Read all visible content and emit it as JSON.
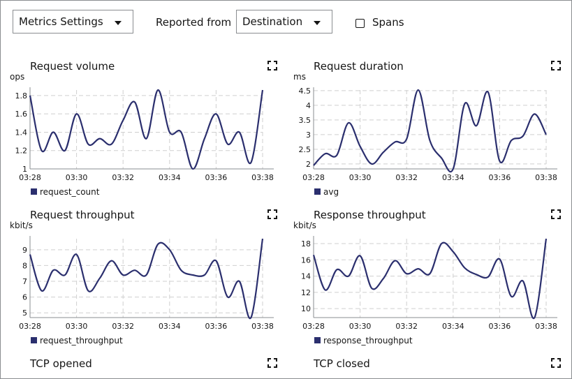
{
  "toolbar": {
    "metrics_settings": "Metrics Settings",
    "reported_from_label": "Reported from",
    "reported_from_value": "Destination",
    "spans_label": "Spans",
    "spans_checked": false
  },
  "colors": {
    "series": "#2b2f6e",
    "grid": "#cfcfcf",
    "axis": "#8a8d90"
  },
  "chart_data": [
    {
      "id": "request-volume",
      "type": "line",
      "title": "Request volume",
      "ylabel": "ops",
      "x": [
        "03:28",
        "03:28:30",
        "03:29",
        "03:29:30",
        "03:30",
        "03:30:30",
        "03:31",
        "03:31:30",
        "03:32",
        "03:32:30",
        "03:33",
        "03:33:30",
        "03:34",
        "03:34:30",
        "03:35",
        "03:35:30",
        "03:36",
        "03:36:30",
        "03:37",
        "03:37:30",
        "03:38"
      ],
      "xticks": [
        "03:28",
        "03:30",
        "03:32",
        "03:34",
        "03:36",
        "03:38"
      ],
      "yticks": [
        1,
        1.2,
        1.4,
        1.6,
        1.8
      ],
      "ylim": [
        1,
        1.86
      ],
      "series": [
        {
          "name": "request_count",
          "values": [
            1.8,
            1.2,
            1.4,
            1.2,
            1.6,
            1.27,
            1.33,
            1.27,
            1.53,
            1.73,
            1.33,
            1.86,
            1.4,
            1.4,
            1.0,
            1.33,
            1.6,
            1.27,
            1.4,
            1.07,
            1.86
          ]
        }
      ]
    },
    {
      "id": "request-duration",
      "type": "line",
      "title": "Request duration",
      "ylabel": "ms",
      "x": [
        "03:28",
        "03:28:30",
        "03:29",
        "03:29:30",
        "03:30",
        "03:30:30",
        "03:31",
        "03:31:30",
        "03:32",
        "03:32:30",
        "03:33",
        "03:33:30",
        "03:34",
        "03:34:30",
        "03:35",
        "03:35:30",
        "03:36",
        "03:36:30",
        "03:37",
        "03:37:30",
        "03:38"
      ],
      "xticks": [
        "03:28",
        "03:30",
        "03:32",
        "03:34",
        "03:36",
        "03:38"
      ],
      "yticks": [
        2,
        2.5,
        3,
        3.5,
        4,
        4.5
      ],
      "ylim": [
        1.83,
        4.52
      ],
      "series": [
        {
          "name": "avg",
          "values": [
            1.95,
            2.35,
            2.3,
            3.4,
            2.6,
            2.0,
            2.4,
            2.75,
            2.85,
            4.52,
            2.8,
            2.2,
            1.83,
            4.05,
            3.3,
            4.45,
            2.1,
            2.8,
            2.95,
            3.7,
            3.0
          ]
        }
      ]
    },
    {
      "id": "request-throughput",
      "type": "line",
      "title": "Request throughput",
      "ylabel": "kbit/s",
      "x": [
        "03:28",
        "03:28:30",
        "03:29",
        "03:29:30",
        "03:30",
        "03:30:30",
        "03:31",
        "03:31:30",
        "03:32",
        "03:32:30",
        "03:33",
        "03:33:30",
        "03:34",
        "03:34:30",
        "03:35",
        "03:35:30",
        "03:36",
        "03:36:30",
        "03:37",
        "03:37:30",
        "03:38"
      ],
      "xticks": [
        "03:28",
        "03:30",
        "03:32",
        "03:34",
        "03:36",
        "03:38"
      ],
      "yticks": [
        5,
        6,
        7,
        8,
        9
      ],
      "ylim": [
        4.7,
        9.7
      ],
      "series": [
        {
          "name": "request_throughput",
          "values": [
            8.7,
            6.4,
            7.7,
            7.4,
            8.7,
            6.4,
            7.2,
            8.3,
            7.4,
            7.7,
            7.4,
            9.35,
            9.0,
            7.7,
            7.4,
            7.4,
            8.3,
            6.0,
            7.0,
            4.7,
            9.7
          ]
        }
      ]
    },
    {
      "id": "response-throughput",
      "type": "line",
      "title": "Response throughput",
      "ylabel": "kbit/s",
      "x": [
        "03:28",
        "03:28:30",
        "03:29",
        "03:29:30",
        "03:30",
        "03:30:30",
        "03:31",
        "03:31:30",
        "03:32",
        "03:32:30",
        "03:33",
        "03:33:30",
        "03:34",
        "03:34:30",
        "03:35",
        "03:35:30",
        "03:36",
        "03:36:30",
        "03:37",
        "03:37:30",
        "03:38"
      ],
      "xticks": [
        "03:28",
        "03:30",
        "03:32",
        "03:34",
        "03:36",
        "03:38"
      ],
      "yticks": [
        10,
        12,
        14,
        16,
        18
      ],
      "ylim": [
        8.9,
        18.6
      ],
      "series": [
        {
          "name": "response_throughput",
          "values": [
            16.6,
            12.3,
            14.8,
            14.0,
            16.5,
            12.5,
            13.7,
            15.9,
            14.3,
            14.9,
            14.3,
            18.0,
            17.0,
            15.0,
            14.2,
            13.9,
            16.1,
            11.5,
            13.4,
            8.9,
            18.6
          ]
        }
      ]
    }
  ],
  "panels_bottom": [
    {
      "title": "TCP opened"
    },
    {
      "title": "TCP closed"
    }
  ]
}
